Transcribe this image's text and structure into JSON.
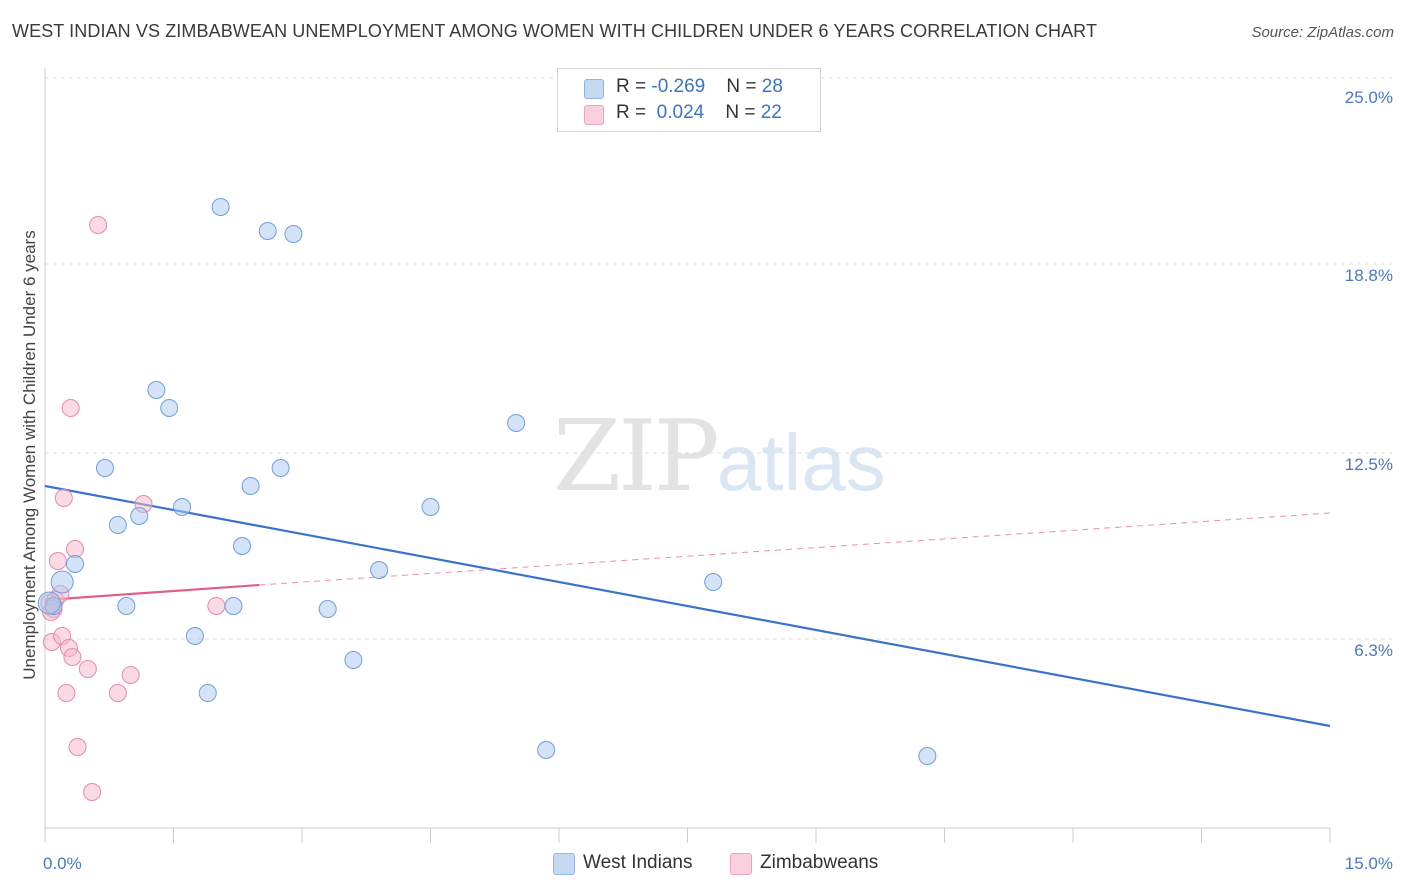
{
  "title": "WEST INDIAN VS ZIMBABWEAN UNEMPLOYMENT AMONG WOMEN WITH CHILDREN UNDER 6 YEARS CORRELATION CHART",
  "source": "Source: ZipAtlas.com",
  "watermark": {
    "zip": "ZIP",
    "atlas": "atlas"
  },
  "legend": {
    "rows": [
      {
        "r_label": "R = ",
        "r_value": "-0.269",
        "n_label": "N = ",
        "n_value": "28",
        "color": "#a9c8ef"
      },
      {
        "r_label": "R = ",
        "r_value": " 0.024",
        "n_label": "N = ",
        "n_value": "22",
        "color": "#f5b8ca"
      }
    ]
  },
  "bottom_legend": [
    {
      "label": "West Indians",
      "color": "#a9c8ef"
    },
    {
      "label": "Zimbabweans",
      "color": "#f5b8ca"
    }
  ],
  "chart_data": {
    "type": "scatter",
    "title": "WEST INDIAN VS ZIMBABWEAN UNEMPLOYMENT AMONG WOMEN WITH CHILDREN UNDER 6 YEARS CORRELATION CHART",
    "xlabel": "",
    "ylabel": "Unemployment Among Women with Children Under 6 years",
    "xlim": [
      0,
      15
    ],
    "ylim": [
      0,
      25
    ],
    "x_tick_labels": [
      "0.0%",
      "15.0%"
    ],
    "y_ticks": [
      6.3,
      12.5,
      18.8,
      25.0
    ],
    "y_tick_labels": [
      "6.3%",
      "12.5%",
      "18.8%",
      "25.0%"
    ],
    "series": [
      {
        "name": "West Indians",
        "color": "#a9c8ef",
        "stroke": "#6f9fdc",
        "trend_color": "#3a74c8",
        "trend": [
          [
            0,
            11.4
          ],
          [
            15,
            3.4
          ]
        ],
        "points": [
          [
            0.1,
            7.4
          ],
          [
            0.2,
            8.2
          ],
          [
            0.35,
            8.8
          ],
          [
            0.7,
            12.0
          ],
          [
            0.85,
            10.1
          ],
          [
            0.95,
            7.4
          ],
          [
            1.1,
            10.4
          ],
          [
            1.3,
            14.6
          ],
          [
            1.45,
            14.0
          ],
          [
            1.6,
            10.7
          ],
          [
            1.75,
            6.4
          ],
          [
            1.9,
            4.5
          ],
          [
            2.05,
            20.7
          ],
          [
            2.2,
            7.4
          ],
          [
            2.3,
            9.4
          ],
          [
            2.4,
            11.4
          ],
          [
            2.6,
            19.9
          ],
          [
            2.75,
            12.0
          ],
          [
            2.9,
            19.8
          ],
          [
            3.3,
            7.3
          ],
          [
            3.6,
            5.6
          ],
          [
            3.9,
            8.6
          ],
          [
            4.5,
            10.7
          ],
          [
            5.5,
            13.5
          ],
          [
            5.85,
            2.6
          ],
          [
            7.8,
            8.2
          ],
          [
            10.3,
            2.4
          ],
          [
            0.05,
            7.5
          ]
        ]
      },
      {
        "name": "Zimbabweans",
        "color": "#f5b8ca",
        "stroke": "#e88aa6",
        "trend_color": "#e05f8a",
        "trend_solid": [
          [
            0,
            7.6
          ],
          [
            2.5,
            8.1
          ]
        ],
        "trend_dashed": [
          [
            2.5,
            8.1
          ],
          [
            15,
            10.5
          ]
        ],
        "points": [
          [
            0.05,
            7.5
          ],
          [
            0.08,
            6.2
          ],
          [
            0.1,
            7.3
          ],
          [
            0.12,
            7.6
          ],
          [
            0.15,
            8.9
          ],
          [
            0.2,
            6.4
          ],
          [
            0.22,
            11.0
          ],
          [
            0.25,
            4.5
          ],
          [
            0.28,
            6.0
          ],
          [
            0.3,
            14.0
          ],
          [
            0.32,
            5.7
          ],
          [
            0.35,
            9.3
          ],
          [
            0.38,
            2.7
          ],
          [
            0.5,
            5.3
          ],
          [
            0.55,
            1.2
          ],
          [
            0.62,
            20.1
          ],
          [
            0.85,
            4.5
          ],
          [
            1.0,
            5.1
          ],
          [
            1.15,
            10.8
          ],
          [
            2.0,
            7.4
          ],
          [
            0.18,
            7.8
          ],
          [
            0.07,
            7.2
          ]
        ]
      }
    ],
    "legend_position": "top-center",
    "grid": true
  }
}
